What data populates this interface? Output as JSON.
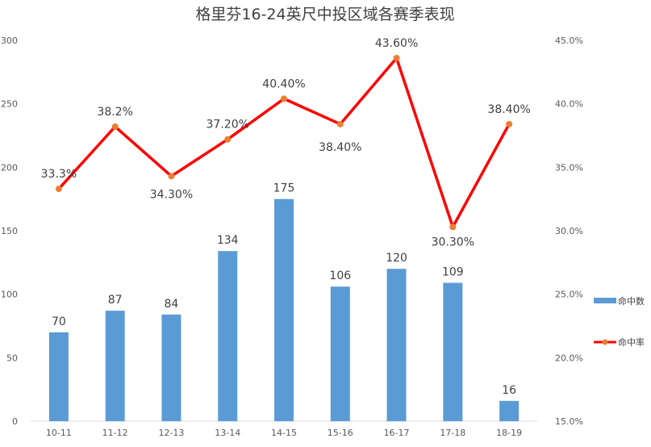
{
  "chart_data": {
    "type": "bar",
    "title": "格里芬16-24英尺中投区域各赛季表现",
    "categories": [
      "10-11",
      "11-12",
      "12-13",
      "13-14",
      "14-15",
      "15-16",
      "16-17",
      "17-18",
      "18-19"
    ],
    "y_left": {
      "ticks": [
        "0",
        "50",
        "100",
        "150",
        "200",
        "250",
        "300"
      ],
      "range": [
        0,
        300
      ]
    },
    "y_right": {
      "ticks": [
        "15.0%",
        "20.0%",
        "25.0%",
        "30.0%",
        "35.0%",
        "40.0%",
        "45.0%"
      ],
      "range": [
        15,
        45
      ]
    },
    "series": [
      {
        "name": "命中数",
        "type": "bar",
        "axis": "left",
        "color": "#5b9bd5",
        "values": [
          70,
          87,
          84,
          134,
          175,
          106,
          120,
          109,
          16
        ],
        "labels": [
          "70",
          "87",
          "84",
          "134",
          "175",
          "106",
          "120",
          "109",
          "16"
        ]
      },
      {
        "name": "命中率",
        "type": "line",
        "axis": "right",
        "color": "#ff0000",
        "marker_color": "#ed7d31",
        "values": [
          33.3,
          38.2,
          34.3,
          37.2,
          40.4,
          38.4,
          43.6,
          30.3,
          38.4
        ],
        "labels": [
          "33.3%",
          "38.2%",
          "34.30%",
          "37.20%",
          "40.40%",
          "38.40%",
          "43.60%",
          "30.30%",
          "38.40%"
        ]
      }
    ],
    "legend_position": "right",
    "grid": false
  }
}
